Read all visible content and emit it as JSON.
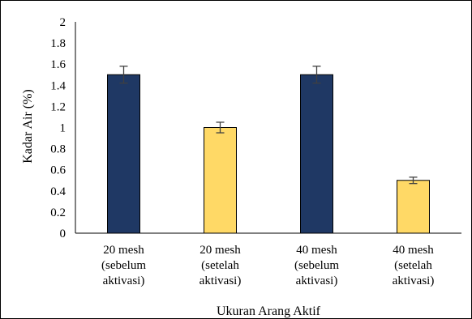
{
  "chart_data": {
    "type": "bar",
    "title": "",
    "xlabel": "Ukuran Arang Aktif",
    "ylabel": "Kadar Air (%)",
    "ylim": [
      0,
      2
    ],
    "yticks": [
      "0",
      "0.2",
      "0.4",
      "0.6",
      "0.8",
      "1",
      "1.2",
      "1.4",
      "1.6",
      "1.8",
      "2"
    ],
    "grid": false,
    "categories": [
      [
        "20 mesh",
        "(sebelum",
        "aktivasi)"
      ],
      [
        "20 mesh",
        "(setelah",
        "aktivasi)"
      ],
      [
        "40 mesh",
        "(sebelum",
        "aktivasi)"
      ],
      [
        "40 mesh",
        "(setelah",
        "aktivasi)"
      ]
    ],
    "values": [
      1.5,
      1.0,
      1.5,
      0.5
    ],
    "error": [
      0.08,
      0.05,
      0.08,
      0.03
    ],
    "bar_colors": [
      "#1f3864",
      "#ffd966",
      "#1f3864",
      "#ffd966"
    ],
    "bar_stroke": "#000000"
  }
}
